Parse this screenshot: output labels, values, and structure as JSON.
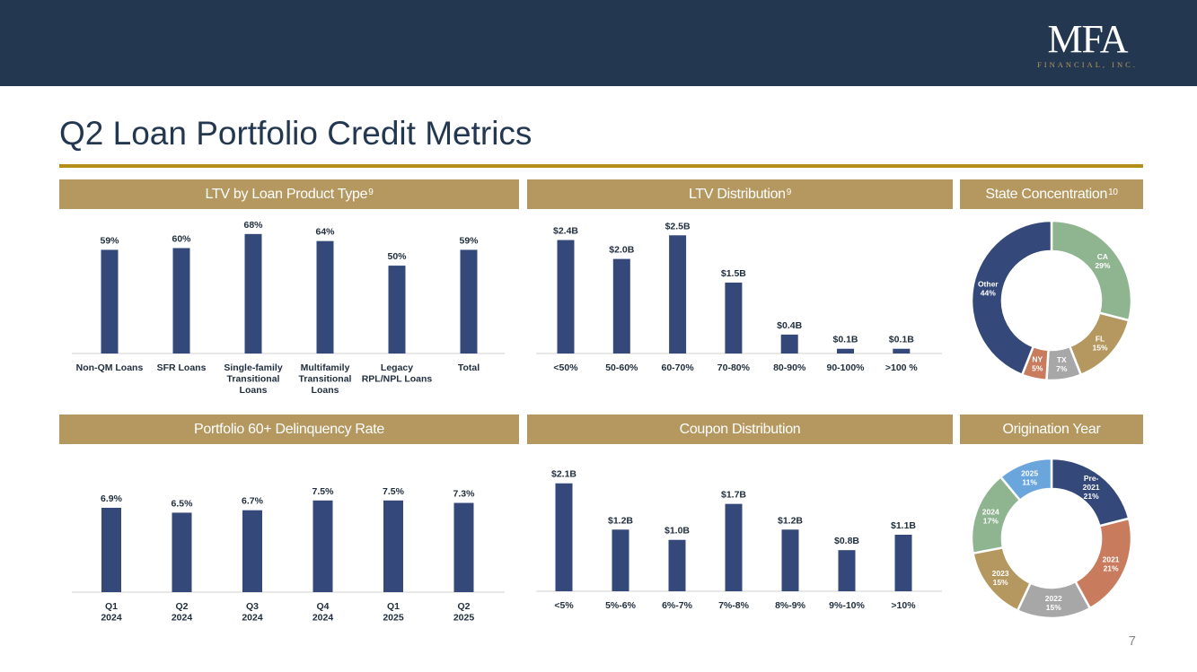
{
  "header": {
    "logo_main": "MFA",
    "logo_sub": "FINANCIAL, INC."
  },
  "page": {
    "title": "Q2 Loan Portfolio Credit Metrics",
    "number": "7"
  },
  "colors": {
    "bar": "#34497a",
    "header_band": "#b5985f",
    "top_bar": "#233850",
    "rule": "#b38f1a"
  },
  "chart_data": [
    {
      "id": "ltv-product",
      "type": "bar",
      "title": "LTV by Loan Product Type",
      "title_sup": "9",
      "categories": [
        [
          "Non-QM Loans"
        ],
        [
          "SFR Loans"
        ],
        [
          "Single-family",
          "Transitional",
          "Loans"
        ],
        [
          "Multifamily",
          "Transitional",
          "Loans"
        ],
        [
          "Legacy",
          "RPL/NPL Loans"
        ],
        [
          "Total"
        ]
      ],
      "values": [
        59,
        60,
        68,
        64,
        50,
        59
      ],
      "labels": [
        "59%",
        "60%",
        "68%",
        "64%",
        "50%",
        "59%"
      ],
      "ylim": [
        0,
        72
      ]
    },
    {
      "id": "ltv-distribution",
      "type": "bar",
      "title": "LTV Distribution",
      "title_sup": "9",
      "categories": [
        [
          "<50%"
        ],
        [
          "50-60%"
        ],
        [
          "60-70%"
        ],
        [
          "70-80%"
        ],
        [
          "80-90%"
        ],
        [
          "90-100%"
        ],
        [
          ">100 %"
        ]
      ],
      "values": [
        2.4,
        2.0,
        2.5,
        1.5,
        0.4,
        0.1,
        0.1
      ],
      "labels": [
        "$2.4B",
        "$2.0B",
        "$2.5B",
        "$1.5B",
        "$0.4B",
        "$0.1B",
        "$0.1B"
      ],
      "ylim": [
        0,
        2.6
      ]
    },
    {
      "id": "state-concentration",
      "type": "pie",
      "title": "State Concentration",
      "title_sup": "10",
      "slices": [
        {
          "name": "CA",
          "pct": "29%",
          "value": 29,
          "color": "#8fb590",
          "text": "#ffffff"
        },
        {
          "name": "FL",
          "pct": "15%",
          "value": 15,
          "color": "#b5985f",
          "text": "#ffffff"
        },
        {
          "name": "TX",
          "pct": "7%",
          "value": 7,
          "color": "#a7a7a7",
          "text": "#ffffff"
        },
        {
          "name": "NY",
          "pct": "5%",
          "value": 5,
          "color": "#c97b5e",
          "text": "#ffffff"
        },
        {
          "name": "Other",
          "pct": "44%",
          "value": 44,
          "color": "#34497a",
          "text": "#ffffff"
        }
      ]
    },
    {
      "id": "delinquency",
      "type": "bar",
      "title": "Portfolio 60+ Delinquency Rate",
      "title_sup": "",
      "categories": [
        [
          "Q1",
          "2024"
        ],
        [
          "Q2",
          "2024"
        ],
        [
          "Q3",
          "2024"
        ],
        [
          "Q4",
          "2024"
        ],
        [
          "Q1",
          "2025"
        ],
        [
          "Q2",
          "2025"
        ]
      ],
      "values": [
        6.9,
        6.5,
        6.7,
        7.5,
        7.5,
        7.3
      ],
      "labels": [
        "6.9%",
        "6.5%",
        "6.7%",
        "7.5%",
        "7.5%",
        "7.3%"
      ],
      "ylim": [
        0,
        9.1
      ]
    },
    {
      "id": "coupon-distribution",
      "type": "bar",
      "title": "Coupon Distribution",
      "title_sup": "",
      "categories": [
        [
          "<5%"
        ],
        [
          "5%-6%"
        ],
        [
          "6%-7%"
        ],
        [
          "7%-8%"
        ],
        [
          "8%-9%"
        ],
        [
          "9%-10%"
        ],
        [
          ">10%"
        ]
      ],
      "values": [
        2.1,
        1.2,
        1.0,
        1.7,
        1.2,
        0.8,
        1.1
      ],
      "labels": [
        "$2.1B",
        "$1.2B",
        "$1.0B",
        "$1.7B",
        "$1.2B",
        "$0.8B",
        "$1.1B"
      ],
      "ylim": [
        0,
        2.2
      ]
    },
    {
      "id": "origination-year",
      "type": "pie",
      "title": "Origination Year",
      "title_sup": "",
      "slices": [
        {
          "name": "Pre-2021",
          "label_lines": [
            "Pre-",
            "2021",
            "21%"
          ],
          "pct": "21%",
          "value": 21,
          "color": "#34497a",
          "text": "#ffffff"
        },
        {
          "name": "2021",
          "label_lines": [
            "2021",
            "21%"
          ],
          "pct": "21%",
          "value": 21,
          "color": "#c97b5e",
          "text": "#ffffff"
        },
        {
          "name": "2022",
          "label_lines": [
            "2022",
            "15%"
          ],
          "pct": "15%",
          "value": 15,
          "color": "#a7a7a7",
          "text": "#ffffff"
        },
        {
          "name": "2023",
          "label_lines": [
            "2023",
            "15%"
          ],
          "pct": "15%",
          "value": 15,
          "color": "#b5985f",
          "text": "#ffffff"
        },
        {
          "name": "2024",
          "label_lines": [
            "2024",
            "17%"
          ],
          "pct": "17%",
          "value": 17,
          "color": "#8fb590",
          "text": "#ffffff"
        },
        {
          "name": "2025",
          "label_lines": [
            "2025",
            "11%"
          ],
          "pct": "11%",
          "value": 11,
          "color": "#6aa6dc",
          "text": "#ffffff"
        }
      ]
    }
  ]
}
